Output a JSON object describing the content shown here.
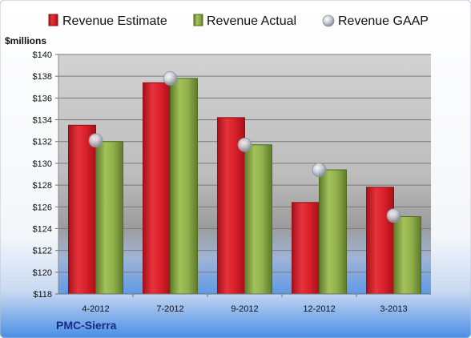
{
  "chart_data": {
    "type": "bar",
    "company": "PMC-Sierra",
    "unit_label": "$millions",
    "categories": [
      "4-2012",
      "7-2012",
      "9-2012",
      "12-2012",
      "3-2013"
    ],
    "series": [
      {
        "name": "Revenue Estimate",
        "kind": "bar",
        "color": "#d81f2a",
        "values": [
          133.5,
          137.4,
          134.2,
          126.4,
          127.8
        ]
      },
      {
        "name": "Revenue Actual",
        "kind": "bar",
        "color": "#8fb04a",
        "values": [
          132.0,
          137.8,
          131.7,
          129.4,
          125.1
        ]
      },
      {
        "name": "Revenue GAAP",
        "kind": "marker",
        "color": "#b8bec8",
        "values": [
          132.1,
          137.8,
          131.7,
          129.4,
          125.2
        ]
      }
    ],
    "ylim": [
      118,
      140
    ],
    "ytick_step": 2,
    "yticks": [
      "$118",
      "$120",
      "$122",
      "$124",
      "$126",
      "$128",
      "$130",
      "$132",
      "$134",
      "$136",
      "$138",
      "$140"
    ],
    "grid": true,
    "legend_position": "top"
  }
}
